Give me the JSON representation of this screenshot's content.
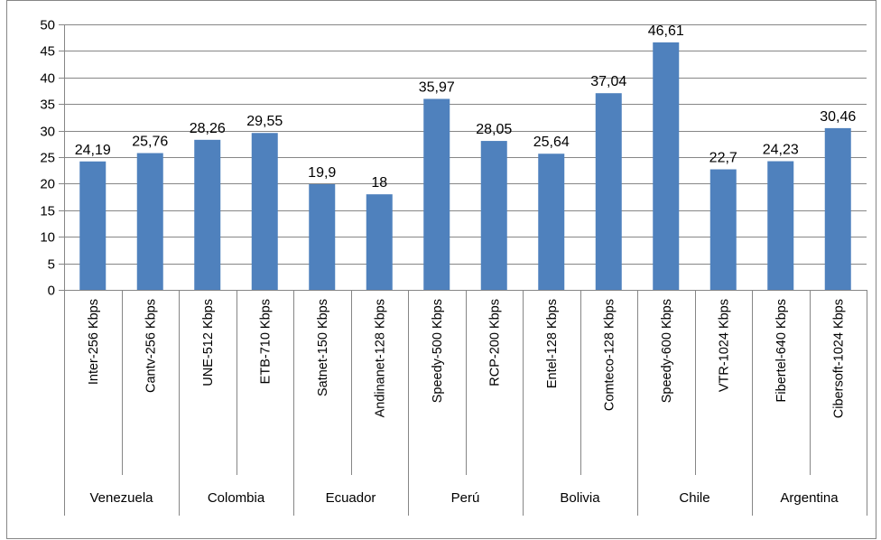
{
  "chart_data": {
    "type": "bar",
    "title": "",
    "xlabel": "",
    "ylabel": "",
    "ylim": [
      0,
      50
    ],
    "yticks": [
      0,
      5,
      10,
      15,
      20,
      25,
      30,
      35,
      40,
      45,
      50
    ],
    "grid": true,
    "legend": "none",
    "bar_color": "#4F81BD",
    "categories": [
      "Inter-256 Kbps",
      "Cantv-256 Kbps",
      "UNE-512 Kbps",
      "ETB-710 Kbps",
      "Satnet-150 Kbps",
      "Andinanet-128 Kbps",
      "Speedy-500 Kbps",
      "RCP-200 Kbps",
      "Entel-128 Kbps",
      "Comteco-128 Kbps",
      "Speedy-600 Kbps",
      "VTR-1024 Kbps",
      "Fibertel-640 Kbps",
      "Cibersoft-1024 Kbps"
    ],
    "values": [
      24.19,
      25.76,
      28.26,
      29.55,
      19.9,
      18,
      35.97,
      28.05,
      25.64,
      37.04,
      46.61,
      22.7,
      24.23,
      30.46
    ],
    "data_labels": [
      "24,19",
      "25,76",
      "28,26",
      "29,55",
      "19,9",
      "18",
      "35,97",
      "28,05",
      "25,64",
      "37,04",
      "46,61",
      "22,7",
      "24,23",
      "30,46"
    ],
    "groups": [
      {
        "name": "Venezuela",
        "count": 2
      },
      {
        "name": "Colombia",
        "count": 2
      },
      {
        "name": "Ecuador",
        "count": 2
      },
      {
        "name": "Perú",
        "count": 2
      },
      {
        "name": "Bolivia",
        "count": 2
      },
      {
        "name": "Chile",
        "count": 2
      },
      {
        "name": "Argentina",
        "count": 2
      }
    ]
  }
}
